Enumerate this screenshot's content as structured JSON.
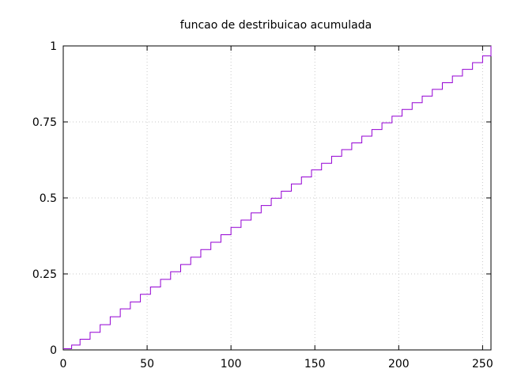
{
  "chart_data": {
    "type": "line",
    "title": "funcao de destribuicao acumulada",
    "xlabel": "",
    "ylabel": "",
    "xlim": [
      0,
      255
    ],
    "ylim": [
      0,
      1
    ],
    "x_ticks": [
      0,
      50,
      100,
      150,
      200,
      250
    ],
    "y_ticks": [
      0,
      0.25,
      0.5,
      0.75,
      1
    ],
    "y_tick_labels": [
      "0",
      "0.25",
      "0.5",
      "0.75",
      "1"
    ],
    "grid": true,
    "legend": "none",
    "series": [
      {
        "color": "#9400d3",
        "step": "post",
        "x": [
          0,
          5,
          10,
          16,
          22,
          28,
          34,
          40,
          46,
          52,
          58,
          64,
          70,
          76,
          82,
          88,
          94,
          100,
          106,
          112,
          118,
          124,
          130,
          136,
          142,
          148,
          154,
          160,
          166,
          172,
          178,
          184,
          190,
          196,
          202,
          208,
          214,
          220,
          226,
          232,
          238,
          244,
          250,
          255
        ],
        "y": [
          0.004,
          0.016,
          0.035,
          0.058,
          0.083,
          0.109,
          0.135,
          0.158,
          0.183,
          0.207,
          0.232,
          0.257,
          0.281,
          0.305,
          0.33,
          0.354,
          0.379,
          0.403,
          0.427,
          0.451,
          0.475,
          0.499,
          0.522,
          0.546,
          0.569,
          0.592,
          0.614,
          0.637,
          0.659,
          0.681,
          0.703,
          0.725,
          0.747,
          0.769,
          0.791,
          0.813,
          0.835,
          0.857,
          0.879,
          0.901,
          0.923,
          0.945,
          0.967,
          1.0
        ]
      }
    ]
  }
}
